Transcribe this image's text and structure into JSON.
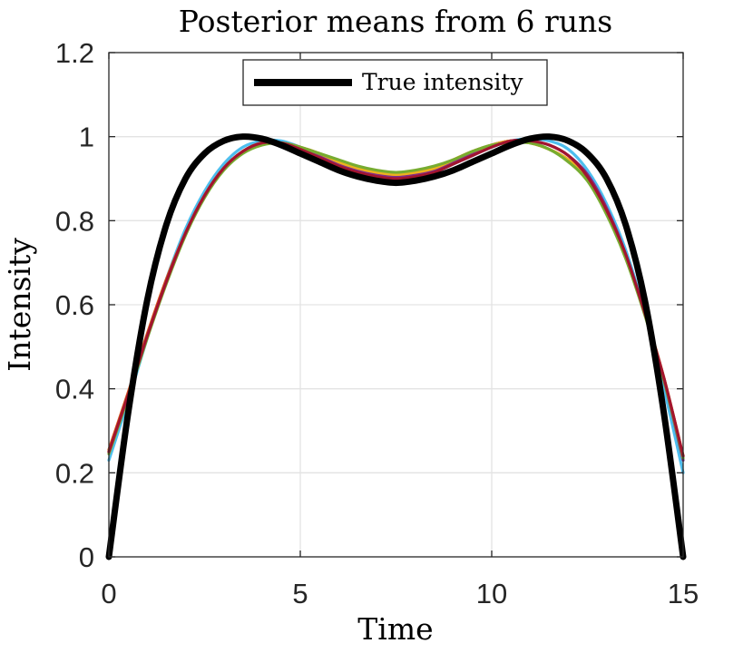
{
  "chart_data": {
    "type": "line",
    "title": "Posterior means from 6 runs",
    "xlabel": "Time",
    "ylabel": "Intensity",
    "xlim": [
      0,
      15
    ],
    "ylim": [
      0,
      1.2
    ],
    "xticks": [
      0,
      5,
      10,
      15
    ],
    "yticks": [
      0,
      0.2,
      0.4,
      0.6,
      0.8,
      1,
      1.2
    ],
    "xtick_labels": [
      "0",
      "5",
      "10",
      "15"
    ],
    "ytick_labels": [
      "0",
      "0.2",
      "0.4",
      "0.6",
      "0.8",
      "1",
      "1.2"
    ],
    "grid": true,
    "legend": {
      "placement": "top-center",
      "entries": [
        "True intensity"
      ]
    },
    "x": [
      0,
      0.5,
      1,
      1.5,
      2,
      2.5,
      3,
      3.5,
      4,
      4.5,
      5,
      5.5,
      6,
      6.5,
      7,
      7.5,
      8,
      8.5,
      9,
      9.5,
      10,
      10.5,
      11,
      11.5,
      12,
      12.5,
      13,
      13.5,
      14,
      14.5,
      15
    ],
    "series": [
      {
        "name": "True intensity",
        "color": "#000000",
        "values": [
          0.0,
          0.34,
          0.61,
          0.79,
          0.9,
          0.96,
          0.99,
          1.0,
          0.995,
          0.98,
          0.96,
          0.94,
          0.92,
          0.905,
          0.895,
          0.89,
          0.895,
          0.905,
          0.92,
          0.94,
          0.96,
          0.98,
          0.995,
          1.0,
          0.99,
          0.96,
          0.9,
          0.79,
          0.61,
          0.34,
          0.0
        ]
      },
      {
        "color": "#4DBEEE",
        "values": [
          0.23,
          0.37,
          0.52,
          0.66,
          0.78,
          0.87,
          0.935,
          0.975,
          0.99,
          0.99,
          0.975,
          0.955,
          0.935,
          0.915,
          0.905,
          0.9,
          0.905,
          0.915,
          0.935,
          0.955,
          0.975,
          0.99,
          0.995,
          0.99,
          0.97,
          0.92,
          0.84,
          0.73,
          0.58,
          0.4,
          0.2
        ]
      },
      {
        "color": "#7E2F8E",
        "values": [
          0.25,
          0.385,
          0.525,
          0.655,
          0.77,
          0.86,
          0.925,
          0.965,
          0.985,
          0.985,
          0.975,
          0.955,
          0.935,
          0.92,
          0.91,
          0.905,
          0.91,
          0.92,
          0.94,
          0.96,
          0.98,
          0.99,
          0.99,
          0.98,
          0.955,
          0.91,
          0.83,
          0.72,
          0.58,
          0.42,
          0.23
        ]
      },
      {
        "color": "#D95319",
        "values": [
          0.255,
          0.39,
          0.53,
          0.66,
          0.77,
          0.86,
          0.925,
          0.965,
          0.985,
          0.985,
          0.975,
          0.96,
          0.94,
          0.925,
          0.915,
          0.91,
          0.915,
          0.925,
          0.945,
          0.965,
          0.98,
          0.99,
          0.985,
          0.97,
          0.945,
          0.9,
          0.82,
          0.715,
          0.58,
          0.425,
          0.24
        ]
      },
      {
        "color": "#EDB120",
        "values": [
          0.25,
          0.385,
          0.525,
          0.655,
          0.77,
          0.86,
          0.925,
          0.965,
          0.985,
          0.985,
          0.975,
          0.96,
          0.94,
          0.925,
          0.915,
          0.91,
          0.915,
          0.925,
          0.945,
          0.965,
          0.98,
          0.99,
          0.985,
          0.97,
          0.945,
          0.9,
          0.82,
          0.715,
          0.58,
          0.425,
          0.24
        ]
      },
      {
        "color": "#77AC30",
        "values": [
          0.245,
          0.38,
          0.52,
          0.65,
          0.765,
          0.855,
          0.92,
          0.96,
          0.98,
          0.985,
          0.975,
          0.96,
          0.945,
          0.93,
          0.92,
          0.915,
          0.92,
          0.93,
          0.945,
          0.965,
          0.98,
          0.985,
          0.985,
          0.97,
          0.94,
          0.895,
          0.815,
          0.71,
          0.575,
          0.42,
          0.235
        ]
      },
      {
        "color": "#A2142F",
        "values": [
          0.25,
          0.385,
          0.525,
          0.655,
          0.77,
          0.86,
          0.925,
          0.965,
          0.985,
          0.985,
          0.97,
          0.95,
          0.93,
          0.915,
          0.905,
          0.9,
          0.905,
          0.915,
          0.935,
          0.955,
          0.975,
          0.99,
          0.99,
          0.98,
          0.955,
          0.905,
          0.825,
          0.72,
          0.58,
          0.425,
          0.24
        ]
      }
    ]
  }
}
